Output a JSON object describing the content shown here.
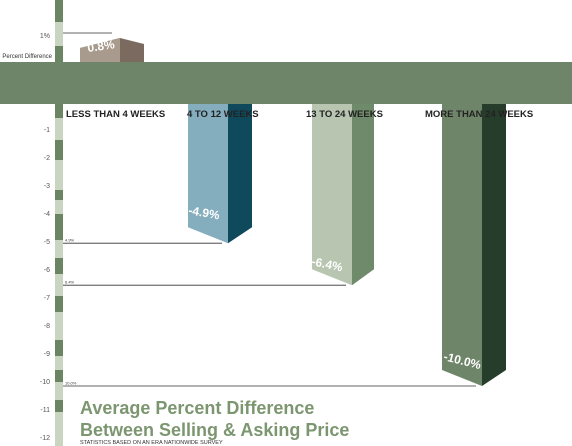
{
  "chart_data": {
    "type": "bar",
    "title_lines": [
      "Average Percent Difference",
      "Between Selling & Asking Price"
    ],
    "footnote": "STATISTICS BASED ON AN ERA NATIONWIDE SURVEY",
    "ylabel": "Percent Difference",
    "ylim": [
      -12,
      1
    ],
    "yticks": [
      1,
      -1,
      -2,
      -3,
      -4,
      -5,
      -6,
      -7,
      -8,
      -9,
      -10,
      -11,
      -12
    ],
    "ytick_labels": [
      "1%",
      "-1",
      "-2",
      "-3",
      "-4",
      "-5",
      "-6",
      "-7",
      "-8",
      "-9",
      "-10",
      "-11",
      "-12"
    ],
    "categories": [
      "LESS THAN 4 WEEKS",
      "4 TO 12 WEEKS",
      "13 TO 24 WEEKS",
      "MORE THAN 24 WEEKS"
    ],
    "values": [
      0.8,
      -4.9,
      -6.4,
      -10.0
    ],
    "value_labels": [
      "0.8%",
      "-4.9%",
      "-6.4%",
      "-10.0%"
    ],
    "leader_labels": [
      "",
      "4.9%",
      "6.4%",
      "10.0%"
    ],
    "colors": {
      "band": "#6f8569",
      "axis_dark": "#6b8562",
      "axis_light": "#c9d5c1",
      "bars": [
        {
          "front": "#a89a8d",
          "side": "#7b6a60",
          "top": "#c9bfb4"
        },
        {
          "front": "#84aebe",
          "side": "#0e4a5c",
          "top": "#a8c9d3"
        },
        {
          "front": "#b7c5b1",
          "side": "#6f8a6a",
          "top": "#d3ddcf"
        },
        {
          "front": "#6f8569",
          "side": "#263d2b",
          "top": "#8da287"
        }
      ],
      "title": "#7c9670"
    }
  }
}
